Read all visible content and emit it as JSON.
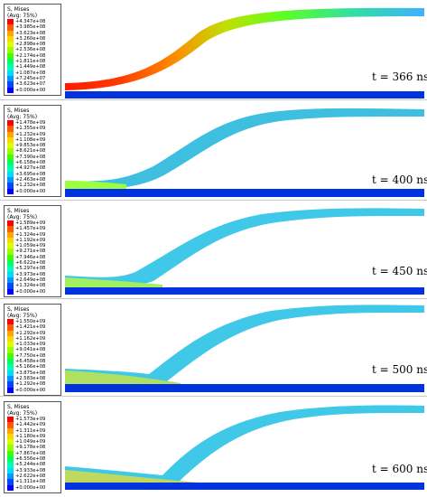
{
  "panels": [
    {
      "time": "t = 366 ns",
      "legend_title_1": "S, Mises",
      "legend_title_2": "(Avg: 75%)",
      "legend_values": [
        "+4.347e+08",
        "+3.985e+08",
        "+3.623e+08",
        "+3.260e+08",
        "+2.898e+08",
        "+2.536e+08",
        "+2.174e+08",
        "+1.811e+08",
        "+1.449e+08",
        "+1.087e+08",
        "+7.245e+07",
        "+3.623e+07",
        "+0.000e+00"
      ]
    },
    {
      "time": "t = 400 ns",
      "legend_title_1": "S, Mises",
      "legend_title_2": "(Avg: 75%)",
      "legend_values": [
        "+1.478e+09",
        "+1.355e+09",
        "+1.232e+09",
        "+1.108e+09",
        "+9.853e+08",
        "+8.621e+08",
        "+7.390e+08",
        "+6.158e+08",
        "+4.927e+08",
        "+3.695e+08",
        "+2.463e+08",
        "+1.232e+08",
        "+0.000e+00"
      ]
    },
    {
      "time": "t = 450 ns",
      "legend_title_1": "S, Mises",
      "legend_title_2": "(Avg: 75%)",
      "legend_values": [
        "+1.589e+09",
        "+1.457e+09",
        "+1.324e+09",
        "+1.192e+09",
        "+1.059e+09",
        "+9.271e+08",
        "+7.946e+08",
        "+6.622e+08",
        "+5.297e+08",
        "+3.973e+08",
        "+2.649e+08",
        "+1.324e+08",
        "+0.000e+00"
      ]
    },
    {
      "time": "t = 500 ns",
      "legend_title_1": "S, Mises",
      "legend_title_2": "(Avg: 75%)",
      "legend_values": [
        "+1.550e+09",
        "+1.421e+09",
        "+1.292e+09",
        "+1.162e+09",
        "+1.033e+09",
        "+9.041e+08",
        "+7.750e+08",
        "+6.458e+08",
        "+5.166e+08",
        "+3.875e+08",
        "+2.583e+08",
        "+1.292e+08",
        "+0.000e+00"
      ]
    },
    {
      "time": "t = 600 ns",
      "legend_title_1": "S, Mises",
      "legend_title_2": "(Avg: 75%)",
      "legend_values": [
        "+1.573e+09",
        "+1.442e+09",
        "+1.311e+09",
        "+1.180e+09",
        "+1.049e+09",
        "+9.178e+08",
        "+7.867e+08",
        "+6.556e+08",
        "+5.244e+08",
        "+3.933e+08",
        "+2.622e+08",
        "+1.311e+08",
        "+0.000e+00"
      ]
    }
  ],
  "colors": {
    "scale": [
      "#ff0000",
      "#ff5a00",
      "#ffa500",
      "#ffd500",
      "#dcff00",
      "#9bff00",
      "#3fff00",
      "#00ff5a",
      "#00ffb4",
      "#00d8ff",
      "#0096ff",
      "#0046ff",
      "#0000ff"
    ],
    "base_plate": "#0033dd",
    "separator": "#c9c9c9"
  }
}
